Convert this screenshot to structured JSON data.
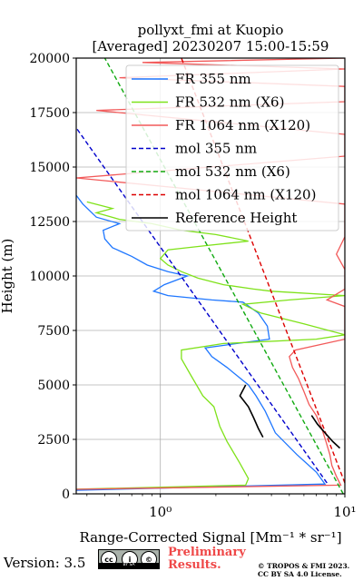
{
  "chart_data": {
    "type": "line",
    "title": "pollyxt_fmi at Kuopio",
    "subtitle": "[Averaged] 20230207 15:00-15:59",
    "xlabel": "Range-Corrected Signal [Mm⁻¹ * sr⁻¹]",
    "ylabel": "Height (m)",
    "xscale": "log",
    "xlim": [
      0.35,
      10
    ],
    "ylim": [
      0,
      20000
    ],
    "x_tick_labels": [
      "10⁰",
      "10¹"
    ],
    "y_ticks": [
      0,
      2500,
      5000,
      7500,
      10000,
      12500,
      15000,
      17500,
      20000
    ],
    "grid": true,
    "legend_position": "top-right",
    "series": [
      {
        "name": "FR 355 nm",
        "color": "#1f77ff",
        "style": "solid",
        "points": [
          [
            0.3,
            150
          ],
          [
            7.8,
            450
          ],
          [
            7.0,
            1000
          ],
          [
            5.5,
            1800
          ],
          [
            4.2,
            2800
          ],
          [
            3.7,
            3800
          ],
          [
            3.3,
            4500
          ],
          [
            3.0,
            5000
          ],
          [
            2.3,
            5800
          ],
          [
            1.9,
            6300
          ],
          [
            1.75,
            6700
          ],
          [
            2.6,
            6900
          ],
          [
            3.9,
            7100
          ],
          [
            3.8,
            7700
          ],
          [
            3.4,
            8300
          ],
          [
            2.8,
            8800
          ],
          [
            1.9,
            8900
          ],
          [
            1.1,
            9100
          ],
          [
            0.92,
            9300
          ],
          [
            1.05,
            9600
          ],
          [
            1.4,
            10000
          ],
          [
            1.1,
            10200
          ],
          [
            0.85,
            10500
          ],
          [
            0.7,
            10900
          ],
          [
            0.62,
            11100
          ],
          [
            0.55,
            11300
          ],
          [
            0.5,
            11700
          ],
          [
            0.49,
            12100
          ],
          [
            0.6,
            12400
          ],
          [
            0.45,
            12700
          ],
          [
            0.38,
            13300
          ],
          [
            0.35,
            13700
          ]
        ]
      },
      {
        "name": "FR 532 nm (X6)",
        "color": "#7fe21a",
        "style": "solid",
        "points": [
          [
            0.3,
            200
          ],
          [
            2.9,
            400
          ],
          [
            3.0,
            700
          ],
          [
            2.7,
            1400
          ],
          [
            2.3,
            2400
          ],
          [
            2.1,
            3100
          ],
          [
            1.95,
            4000
          ],
          [
            1.7,
            4500
          ],
          [
            1.45,
            5500
          ],
          [
            1.3,
            6200
          ],
          [
            1.3,
            6600
          ],
          [
            2.2,
            6900
          ],
          [
            7.0,
            7100
          ],
          [
            10,
            7300
          ],
          [
            6.0,
            7800
          ],
          [
            3.5,
            8300
          ],
          [
            2.8,
            8700
          ],
          [
            5.0,
            8900
          ],
          [
            10,
            9100
          ],
          [
            4.0,
            9300
          ],
          [
            3.2,
            9400
          ],
          [
            2.2,
            9600
          ],
          [
            1.6,
            9900
          ],
          [
            1.3,
            10200
          ],
          [
            1.1,
            10500
          ],
          [
            1.0,
            10800
          ],
          [
            1.1,
            11200
          ],
          [
            1.8,
            11400
          ],
          [
            3.0,
            11600
          ],
          [
            2.0,
            11900
          ],
          [
            1.3,
            12100
          ],
          [
            0.9,
            12400
          ],
          [
            0.6,
            12600
          ],
          [
            0.45,
            12900
          ],
          [
            0.55,
            13100
          ],
          [
            0.4,
            13400
          ]
        ]
      },
      {
        "name": "FR 1064 nm (X120)",
        "color": "#f25a5a",
        "style": "solid",
        "points": [
          [
            0.3,
            200
          ],
          [
            9.5,
            400
          ],
          [
            9.0,
            800
          ],
          [
            8.5,
            1300
          ],
          [
            8.3,
            1800
          ],
          [
            7.9,
            2400
          ],
          [
            7.5,
            3000
          ],
          [
            7.0,
            3600
          ],
          [
            6.4,
            4100
          ],
          [
            6.0,
            4700
          ],
          [
            5.6,
            5300
          ],
          [
            5.2,
            5800
          ],
          [
            5.0,
            6300
          ],
          [
            5.4,
            6600
          ],
          [
            10,
            7100
          ],
          [
            10,
            7300
          ],
          [
            10,
            8600
          ],
          [
            8.0,
            8900
          ],
          [
            10,
            9400
          ],
          [
            10,
            10000
          ],
          [
            10,
            10300
          ],
          [
            9.0,
            11000
          ],
          [
            10,
            11800
          ],
          [
            10,
            12700
          ],
          [
            10,
            13300
          ],
          [
            0.35,
            14500
          ],
          [
            10,
            15500
          ],
          [
            10,
            16500
          ],
          [
            0.45,
            17600
          ],
          [
            10,
            18000
          ],
          [
            10,
            18700
          ],
          [
            0.6,
            19100
          ],
          [
            10,
            19500
          ],
          [
            0.8,
            19800
          ],
          [
            10,
            20000
          ]
        ]
      },
      {
        "name": "mol 355 nm",
        "color": "#0000cc",
        "style": "dashed",
        "points": [
          [
            8.0,
            500
          ],
          [
            0.3,
            17600
          ]
        ]
      },
      {
        "name": "mol 532 nm (X6)",
        "color": "#11aa11",
        "style": "dashed",
        "points": [
          [
            9.8,
            0
          ],
          [
            0.5,
            20000
          ]
        ]
      },
      {
        "name": "mol 1064 nm (X120)",
        "color": "#dd0000",
        "style": "dashed",
        "points": [
          [
            10,
            500
          ],
          [
            1.3,
            20000
          ]
        ]
      },
      {
        "name": "Reference Height",
        "color": "#000000",
        "style": "solid",
        "points": [
          [
            2.9,
            5000
          ],
          [
            2.7,
            4500
          ],
          [
            3.0,
            4000
          ],
          [
            3.2,
            3500
          ],
          [
            3.4,
            3000
          ],
          [
            3.6,
            2600
          ]
        ],
        "extra_segment": [
          [
            6.6,
            3600
          ],
          [
            7.1,
            3200
          ],
          [
            7.8,
            2800
          ],
          [
            8.6,
            2400
          ],
          [
            9.4,
            2100
          ]
        ]
      }
    ]
  },
  "footer": {
    "version": "Version: 3.5",
    "cc_labels": [
      "cc",
      "i",
      "©"
    ],
    "cc_strip": "BY   SA",
    "preliminary_line1": "Preliminary",
    "preliminary_line2": "Results.",
    "copyright_line1": "© TROPOS & FMI 2023.",
    "copyright_line2": "CC BY SA 4.0 License."
  }
}
